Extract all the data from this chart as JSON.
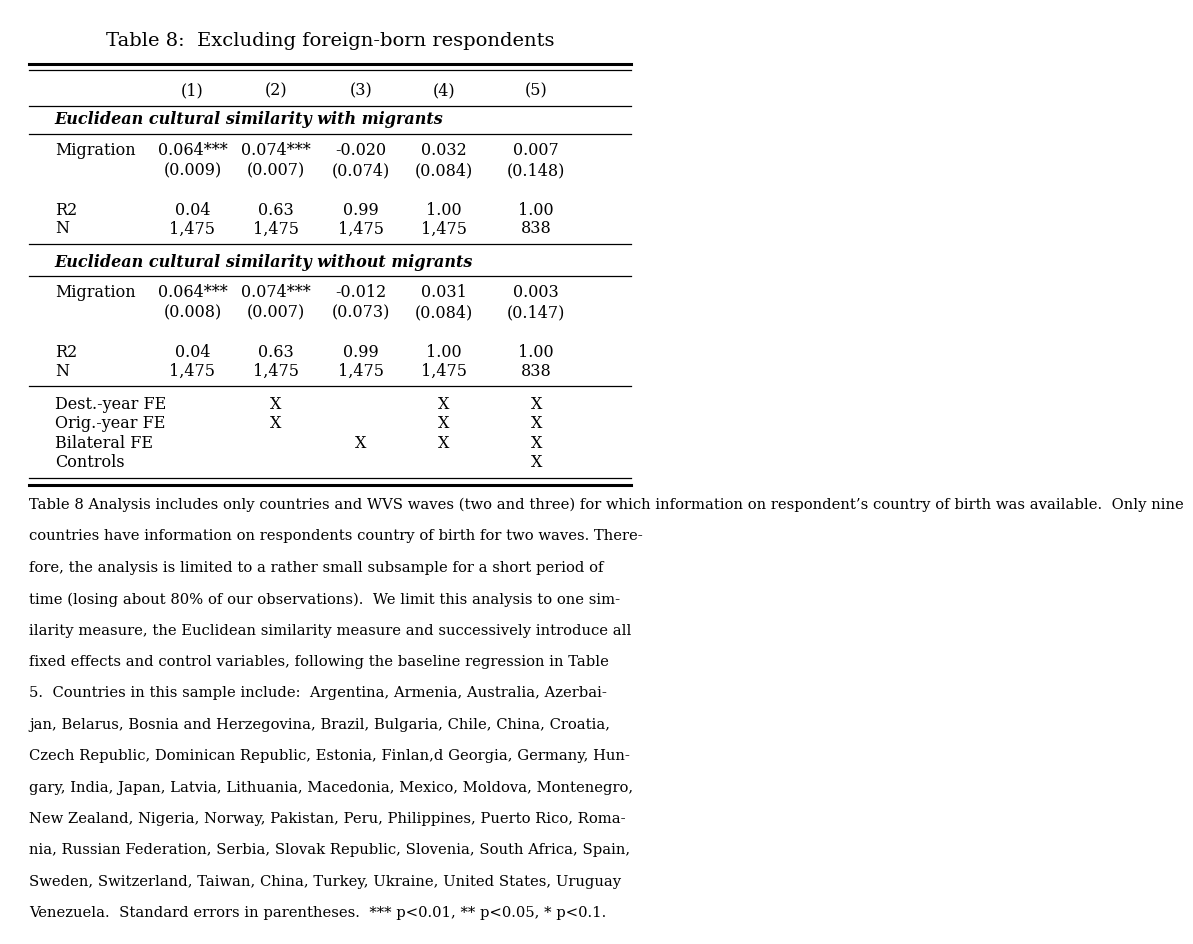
{
  "title": "Table 8:  Excluding foreign-born respondents",
  "columns": [
    "",
    "(1)",
    "(2)",
    "(3)",
    "(4)",
    "(5)"
  ],
  "section1_header": "Euclidean cultural similarity with migrants",
  "section1_rows": [
    [
      "Migration",
      "0.064***",
      "0.074***",
      "-0.020",
      "0.032",
      "0.007"
    ],
    [
      "",
      "(0.009)",
      "(0.007)",
      "(0.074)",
      "(0.084)",
      "(0.148)"
    ],
    [
      "",
      "",
      "",
      "",
      "",
      ""
    ],
    [
      "R2",
      "0.04",
      "0.63",
      "0.99",
      "1.00",
      "1.00"
    ],
    [
      "N",
      "1,475",
      "1,475",
      "1,475",
      "1,475",
      "838"
    ]
  ],
  "section2_header": "Euclidean cultural similarity without migrants",
  "section2_rows": [
    [
      "Migration",
      "0.064***",
      "0.074***",
      "-0.012",
      "0.031",
      "0.003"
    ],
    [
      "",
      "(0.008)",
      "(0.007)",
      "(0.073)",
      "(0.084)",
      "(0.147)"
    ],
    [
      "",
      "",
      "",
      "",
      "",
      ""
    ],
    [
      "R2",
      "0.04",
      "0.63",
      "0.99",
      "1.00",
      "1.00"
    ],
    [
      "N",
      "1,475",
      "1,475",
      "1,475",
      "1,475",
      "838"
    ]
  ],
  "fe_rows": [
    [
      "Dest.-year FE",
      "",
      "X",
      "",
      "X",
      "X"
    ],
    [
      "Orig.-year FE",
      "",
      "X",
      "",
      "X",
      "X"
    ],
    [
      "Bilateral FE",
      "",
      "",
      "X",
      "X",
      "X"
    ],
    [
      "Controls",
      "",
      "",
      "",
      "",
      "X"
    ]
  ],
  "footnote_lines": [
    "Table 8 Analysis includes only countries and WVS waves (two and three) for which information on respondent’s country of birth was available.  Only nine",
    "countries have information on respondents country of birth for two waves. There-",
    "fore, the analysis is limited to a rather small subsample for a short period of",
    "time (losing about 80% of our observations).  We limit this analysis to one sim-",
    "ilarity measure, the Euclidean similarity measure and successively introduce all",
    "fixed effects and control variables, following the baseline regression in Table",
    "5.  Countries in this sample include:  Argentina, Armenia, Australia, Azerbai-",
    "jan, Belarus, Bosnia and Herzegovina, Brazil, Bulgaria, Chile, China, Croatia,",
    "Czech Republic, Dominican Republic, Estonia, Finlan,d Georgia, Germany, Hun-",
    "gary, India, Japan, Latvia, Lithuania, Macedonia, Mexico, Moldova, Montenegro,",
    "New Zealand, Nigeria, Norway, Pakistan, Peru, Philippines, Puerto Rico, Roma-",
    "nia, Russian Federation, Serbia, Slovak Republic, Slovenia, South Africa, Spain,",
    "Sweden, Switzerland, Taiwan, China, Turkey, Ukraine, United States, Uruguay",
    "Venezuela.  Standard errors in parentheses.  *** p<0.01, ** p<0.05, * p<0.1."
  ],
  "bg_color": "#ffffff",
  "text_color": "#000000",
  "font_size": 11.5,
  "title_font_size": 14
}
